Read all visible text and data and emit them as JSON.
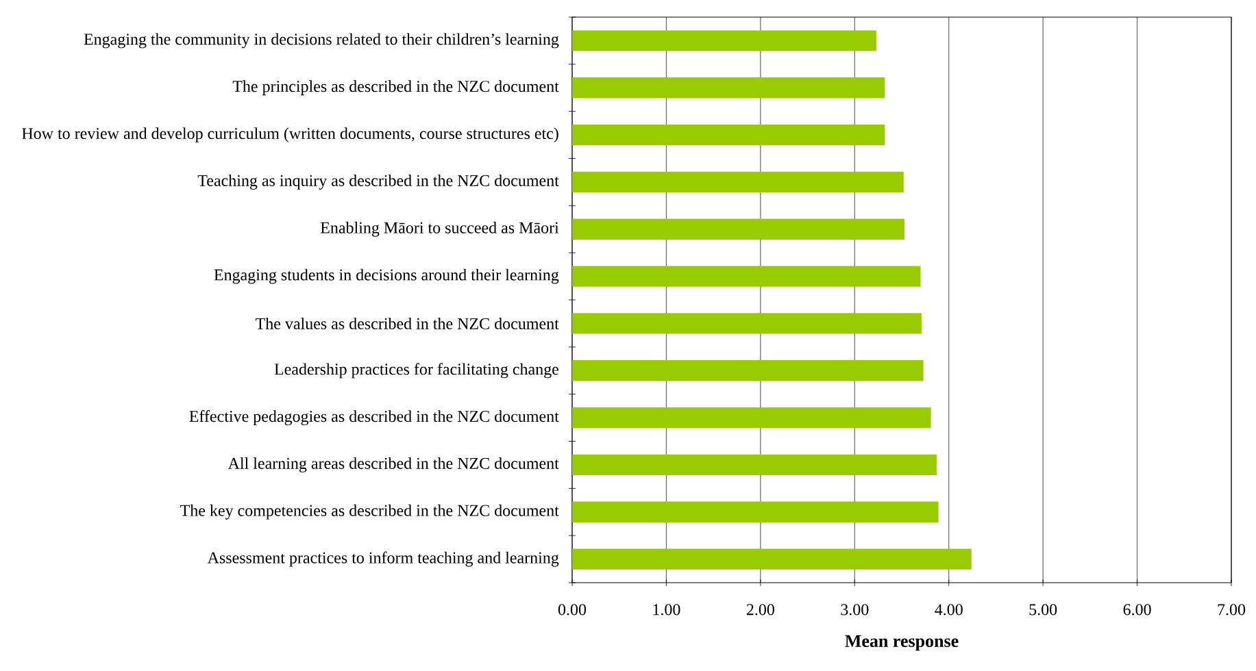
{
  "chart_data": {
    "type": "bar",
    "orientation": "horizontal",
    "categories": [
      "Engaging the community in decisions related to their children’s learning",
      "The principles as described in the NZC document",
      "How to review and develop curriculum (written documents, course structures etc)",
      "Teaching as inquiry as described in the NZC document",
      "Enabling Māori to succeed as Māori",
      "Engaging students in decisions around their learning",
      "The values as described in the NZC document",
      "Leadership practices for facilitating change",
      "Effective pedagogies as described in the NZC document",
      "All learning areas described in the NZC document",
      "The key competencies as described in the NZC document",
      "Assessment practices to inform teaching and learning"
    ],
    "values": [
      3.23,
      3.32,
      3.32,
      3.52,
      3.53,
      3.7,
      3.71,
      3.73,
      3.81,
      3.87,
      3.89,
      4.24
    ],
    "color": "#99cc00",
    "xlabel": "Mean response",
    "xlim": [
      0,
      7
    ],
    "xticks": [
      {
        "value": 0,
        "label": "0.00"
      },
      {
        "value": 1,
        "label": "1.00"
      },
      {
        "value": 2,
        "label": "2.00"
      },
      {
        "value": 3,
        "label": "3.00"
      },
      {
        "value": 4,
        "label": "4.00"
      },
      {
        "value": 5,
        "label": "5.00"
      },
      {
        "value": 6,
        "label": "6.00"
      },
      {
        "value": 7,
        "label": "7.00"
      }
    ],
    "grid": "x"
  }
}
